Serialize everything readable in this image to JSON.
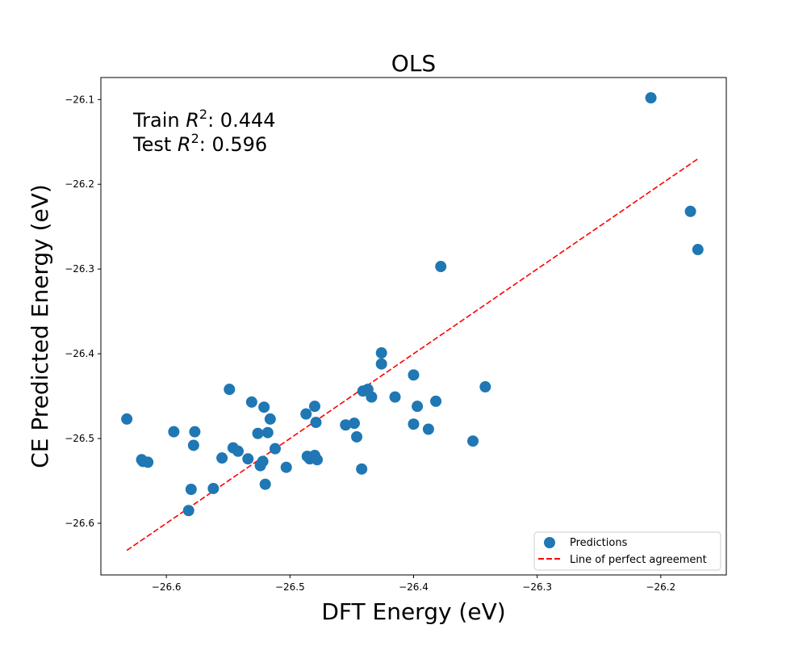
{
  "chart_data": {
    "type": "scatter",
    "title": "OLS",
    "xlabel": "DFT Energy (eV)",
    "ylabel": "CE Predicted Energy (eV)",
    "xlim": [
      -26.653,
      -26.147
    ],
    "ylim": [
      -26.661,
      -26.074
    ],
    "xticks": [
      -26.6,
      -26.5,
      -26.4,
      -26.3,
      -26.2
    ],
    "xtick_labels": [
      "−26.6",
      "−26.5",
      "−26.4",
      "−26.3",
      "−26.2"
    ],
    "yticks": [
      -26.6,
      -26.5,
      -26.4,
      -26.3,
      -26.2,
      -26.1
    ],
    "ytick_labels": [
      "−26.6",
      "−26.5",
      "−26.4",
      "−26.3",
      "−26.2",
      "−26.1"
    ],
    "grid": false,
    "legend_position": "lower-right",
    "annotations": {
      "train_prefix": "Train ",
      "train_value": ": 0.444",
      "test_prefix": "Test ",
      "test_value": ": 0.596",
      "r_symbol": "R",
      "r_exponent": "2"
    },
    "series": [
      {
        "name": "Predictions",
        "kind": "scatter",
        "color": "#1f77b4",
        "points": [
          [
            -26.632,
            -26.477
          ],
          [
            -26.62,
            -26.525
          ],
          [
            -26.619,
            -26.527
          ],
          [
            -26.615,
            -26.528
          ],
          [
            -26.594,
            -26.492
          ],
          [
            -26.582,
            -26.585
          ],
          [
            -26.58,
            -26.56
          ],
          [
            -26.578,
            -26.508
          ],
          [
            -26.577,
            -26.492
          ],
          [
            -26.562,
            -26.559
          ],
          [
            -26.555,
            -26.523
          ],
          [
            -26.549,
            -26.442
          ],
          [
            -26.546,
            -26.511
          ],
          [
            -26.542,
            -26.515
          ],
          [
            -26.534,
            -26.524
          ],
          [
            -26.531,
            -26.457
          ],
          [
            -26.526,
            -26.494
          ],
          [
            -26.524,
            -26.532
          ],
          [
            -26.522,
            -26.527
          ],
          [
            -26.521,
            -26.463
          ],
          [
            -26.52,
            -26.554
          ],
          [
            -26.518,
            -26.493
          ],
          [
            -26.516,
            -26.477
          ],
          [
            -26.512,
            -26.512
          ],
          [
            -26.503,
            -26.534
          ],
          [
            -26.487,
            -26.471
          ],
          [
            -26.486,
            -26.521
          ],
          [
            -26.484,
            -26.524
          ],
          [
            -26.48,
            -26.52
          ],
          [
            -26.48,
            -26.462
          ],
          [
            -26.479,
            -26.481
          ],
          [
            -26.478,
            -26.525
          ],
          [
            -26.455,
            -26.484
          ],
          [
            -26.448,
            -26.482
          ],
          [
            -26.446,
            -26.498
          ],
          [
            -26.442,
            -26.536
          ],
          [
            -26.441,
            -26.444
          ],
          [
            -26.437,
            -26.442
          ],
          [
            -26.434,
            -26.451
          ],
          [
            -26.426,
            -26.399
          ],
          [
            -26.426,
            -26.412
          ],
          [
            -26.415,
            -26.451
          ],
          [
            -26.4,
            -26.425
          ],
          [
            -26.4,
            -26.483
          ],
          [
            -26.397,
            -26.462
          ],
          [
            -26.388,
            -26.489
          ],
          [
            -26.382,
            -26.456
          ],
          [
            -26.378,
            -26.297
          ],
          [
            -26.352,
            -26.503
          ],
          [
            -26.342,
            -26.439
          ],
          [
            -26.208,
            -26.098
          ],
          [
            -26.176,
            -26.232
          ],
          [
            -26.17,
            -26.277
          ]
        ]
      },
      {
        "name": "Line of perfect agreement",
        "kind": "line",
        "color": "#ff0000",
        "x": [
          -26.632,
          -26.17
        ],
        "y": [
          -26.632,
          -26.17
        ]
      }
    ]
  }
}
